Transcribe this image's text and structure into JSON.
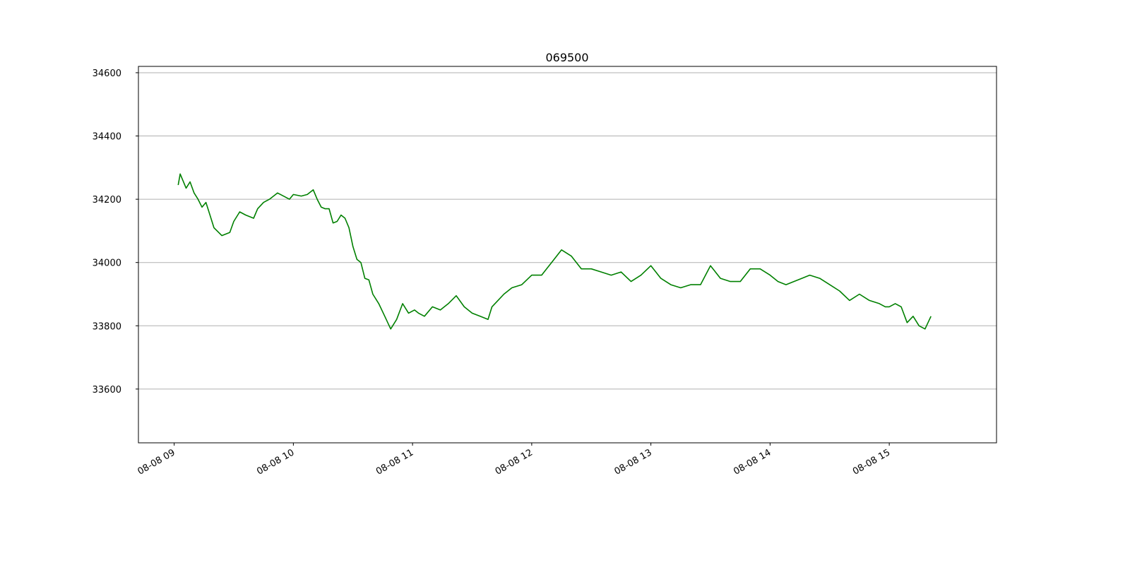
{
  "chart_data": {
    "type": "line",
    "title": "069500",
    "xlabel": "",
    "ylabel": "",
    "x_ticks": [
      "08-08 09",
      "08-08 10",
      "08-08 11",
      "08-08 12",
      "08-08 13",
      "08-08 14",
      "08-08 15"
    ],
    "y_ticks": [
      33600,
      33800,
      34000,
      34200,
      34400,
      34600
    ],
    "xlim": [
      "08-08 08:42",
      "08-08 15:54"
    ],
    "ylim": [
      33430,
      34620
    ],
    "grid": "horizontal",
    "colors": {
      "line": "#008000",
      "grid": "#b0b0b0",
      "axes": "#000000"
    },
    "series": [
      {
        "x": [
          "08-08 09:02",
          "08-08 09:03",
          "08-08 09:05",
          "08-08 09:06",
          "08-08 09:08",
          "08-08 09:10",
          "08-08 09:12",
          "08-08 09:14",
          "08-08 09:16",
          "08-08 09:18",
          "08-08 09:20",
          "08-08 09:24",
          "08-08 09:28",
          "08-08 09:30",
          "08-08 09:33",
          "08-08 09:36",
          "08-08 09:40",
          "08-08 09:42",
          "08-08 09:45",
          "08-08 09:48",
          "08-08 09:52",
          "08-08 09:55",
          "08-08 09:58",
          "08-08 10:00",
          "08-08 10:04",
          "08-08 10:07",
          "08-08 10:10",
          "08-08 10:12",
          "08-08 10:14",
          "08-08 10:16",
          "08-08 10:18",
          "08-08 10:20",
          "08-08 10:22",
          "08-08 10:24",
          "08-08 10:26",
          "08-08 10:28",
          "08-08 10:30",
          "08-08 10:32",
          "08-08 10:34",
          "08-08 10:36",
          "08-08 10:38",
          "08-08 10:40",
          "08-08 10:43",
          "08-08 10:46",
          "08-08 10:49",
          "08-08 10:52",
          "08-08 10:55",
          "08-08 10:58",
          "08-08 11:01",
          "08-08 11:03",
          "08-08 11:06",
          "08-08 11:10",
          "08-08 11:14",
          "08-08 11:18",
          "08-08 11:22",
          "08-08 11:26",
          "08-08 11:30",
          "08-08 11:34",
          "08-08 11:38",
          "08-08 11:40",
          "08-08 11:43",
          "08-08 11:46",
          "08-08 11:50",
          "08-08 11:55",
          "08-08 12:00",
          "08-08 12:05",
          "08-08 12:10",
          "08-08 12:15",
          "08-08 12:20",
          "08-08 12:25",
          "08-08 12:30",
          "08-08 12:35",
          "08-08 12:40",
          "08-08 12:45",
          "08-08 12:50",
          "08-08 12:55",
          "08-08 13:00",
          "08-08 13:05",
          "08-08 13:10",
          "08-08 13:15",
          "08-08 13:20",
          "08-08 13:25",
          "08-08 13:30",
          "08-08 13:35",
          "08-08 13:40",
          "08-08 13:45",
          "08-08 13:50",
          "08-08 13:55",
          "08-08 14:00",
          "08-08 14:04",
          "08-08 14:08",
          "08-08 14:12",
          "08-08 14:16",
          "08-08 14:20",
          "08-08 14:25",
          "08-08 14:30",
          "08-08 14:35",
          "08-08 14:40",
          "08-08 14:45",
          "08-08 14:50",
          "08-08 14:55",
          "08-08 14:58",
          "08-08 15:00",
          "08-08 15:03",
          "08-08 15:06",
          "08-08 15:09",
          "08-08 15:12",
          "08-08 15:15",
          "08-08 15:18",
          "08-08 15:21"
        ],
        "y": [
          34245,
          34280,
          34250,
          34235,
          34255,
          34220,
          34200,
          34175,
          34190,
          34150,
          34110,
          34085,
          34095,
          34130,
          34160,
          34150,
          34140,
          34170,
          34190,
          34200,
          34220,
          34210,
          34200,
          34215,
          34210,
          34215,
          34230,
          34200,
          34175,
          34170,
          34170,
          34125,
          34130,
          34150,
          34140,
          34110,
          34050,
          34010,
          34000,
          33950,
          33945,
          33900,
          33870,
          33830,
          33790,
          33820,
          33870,
          33840,
          33850,
          33840,
          33830,
          33860,
          33850,
          33870,
          33895,
          33860,
          33840,
          33830,
          33820,
          33860,
          33880,
          33900,
          33920,
          33930,
          33960,
          33960,
          34000,
          34040,
          34020,
          33980,
          33980,
          33970,
          33960,
          33970,
          33940,
          33960,
          33990,
          33950,
          33930,
          33920,
          33930,
          33930,
          33990,
          33950,
          33940,
          33940,
          33980,
          33980,
          33960,
          33940,
          33930,
          33940,
          33950,
          33960,
          33950,
          33930,
          33910,
          33880,
          33900,
          33880,
          33870,
          33860,
          33860,
          33870,
          33860,
          33810,
          33830,
          33800,
          33790,
          33830
        ]
      }
    ]
  }
}
